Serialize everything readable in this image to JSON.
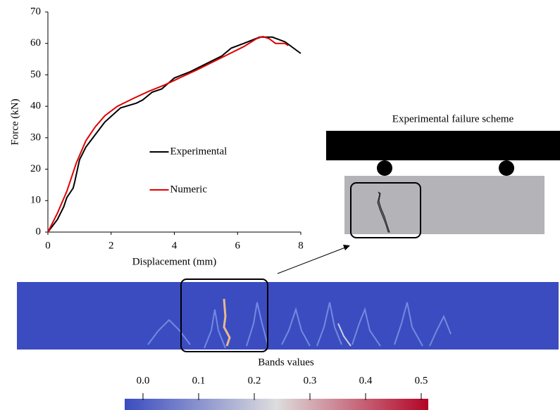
{
  "chart_data": [
    {
      "type": "line",
      "xlabel": "Displacement (mm)",
      "ylabel": "Force (kN)",
      "xlim": [
        0,
        8
      ],
      "xticks": [
        0,
        2,
        4,
        6,
        8
      ],
      "ylim": [
        0,
        70
      ],
      "yticks": [
        0,
        10,
        20,
        30,
        40,
        50,
        60,
        70
      ],
      "legend": "center",
      "series": [
        {
          "name": "Experimental",
          "color": "#000000",
          "x": [
            0,
            0.3,
            0.5,
            0.6,
            0.8,
            0.85,
            1,
            1.2,
            1.5,
            1.8,
            2.3,
            2.8,
            3.0,
            3.3,
            3.6,
            4,
            4.5,
            5,
            5.5,
            5.8,
            6.2,
            6.7,
            7.1,
            7.5,
            8
          ],
          "values": [
            0,
            4,
            8,
            11,
            14,
            16,
            23,
            27,
            31,
            35,
            39.5,
            41,
            42,
            44.5,
            45.5,
            49,
            51,
            53.5,
            56,
            58.5,
            60,
            62,
            62,
            60.5,
            56.8
          ]
        },
        {
          "name": "Numeric",
          "color": "#e00000",
          "x": [
            0,
            0.3,
            0.6,
            0.9,
            1.2,
            1.5,
            1.8,
            2.2,
            2.7,
            3.2,
            3.7,
            4.2,
            4.7,
            5.2,
            5.7,
            6.2,
            6.6,
            6.8,
            7.0,
            7.2,
            7.5,
            7.6
          ],
          "values": [
            0,
            6,
            13,
            22,
            29,
            33.5,
            37,
            40,
            42.5,
            44.8,
            46.8,
            49.2,
            51.5,
            54,
            56.5,
            59,
            61.5,
            62.2,
            61.5,
            60,
            60,
            59.3
          ]
        }
      ]
    },
    {
      "type": "colorbar",
      "title": "Bands values",
      "xlim": [
        0,
        0.5
      ],
      "xticks": [
        {
          "value": 0,
          "label": "0.0"
        },
        {
          "value": 0.1,
          "label": "0.1"
        },
        {
          "value": 0.2,
          "label": "0.2"
        },
        {
          "value": 0.3,
          "label": "0.3"
        },
        {
          "value": 0.4,
          "label": "0.4"
        },
        0.5
      ],
      "colors": [
        "#3b4cc0",
        "#dddddd",
        "#b40426"
      ]
    }
  ],
  "diagram": {
    "title": "Experimental failure scheme"
  }
}
